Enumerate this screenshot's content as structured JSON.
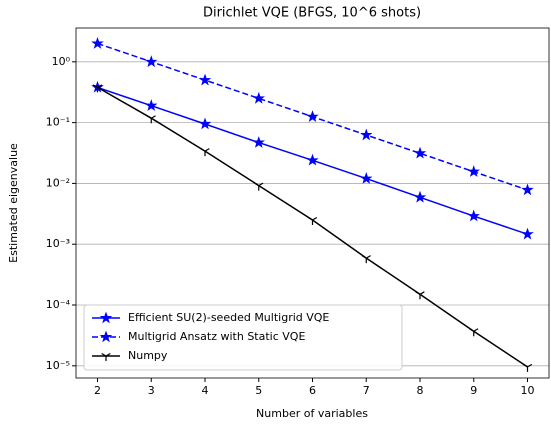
{
  "chart_data": {
    "type": "line",
    "title": "Dirichlet VQE (BFGS, 10^6 shots)",
    "xlabel": "Number of variables",
    "ylabel": "Estimated eigenvalue",
    "x": [
      2,
      3,
      4,
      5,
      6,
      7,
      8,
      9,
      10
    ],
    "series": [
      {
        "name": "Efficient SU(2)-seeded Multigrid VQE",
        "color": "#0000ff",
        "linestyle": "solid",
        "marker": "star",
        "values": [
          0.38,
          0.19,
          0.095,
          0.047,
          0.024,
          0.012,
          0.0059,
          0.0029,
          0.00146
        ]
      },
      {
        "name": "Multigrid Ansatz with Static VQE",
        "color": "#0000ff",
        "linestyle": "dashed",
        "marker": "star",
        "values": [
          2.0,
          1.0,
          0.5,
          0.25,
          0.125,
          0.0625,
          0.0313,
          0.0156,
          0.0078
        ]
      },
      {
        "name": "Numpy",
        "color": "#000000",
        "linestyle": "solid",
        "marker": "tri_down",
        "values": [
          0.38,
          0.118,
          0.034,
          0.0092,
          0.0025,
          0.00059,
          0.00015,
          3.7e-05,
          9.6e-06
        ]
      }
    ],
    "xlim": [
      1.6,
      10.4
    ],
    "xticks": [
      2,
      3,
      4,
      5,
      6,
      7,
      8,
      9,
      10
    ],
    "ylim": [
      6.3e-06,
      3.6
    ],
    "yscale": "log",
    "yticks": [
      {
        "value": 1,
        "label": "10⁰"
      },
      {
        "value": 0.1,
        "label": "10⁻¹"
      },
      {
        "value": 0.01,
        "label": "10⁻²"
      },
      {
        "value": 0.001,
        "label": "10⁻³"
      },
      {
        "value": 0.0001,
        "label": "10⁻⁴"
      },
      {
        "value": 1e-05,
        "label": "10⁻⁵"
      }
    ],
    "grid": "y",
    "legend": "lower left"
  }
}
